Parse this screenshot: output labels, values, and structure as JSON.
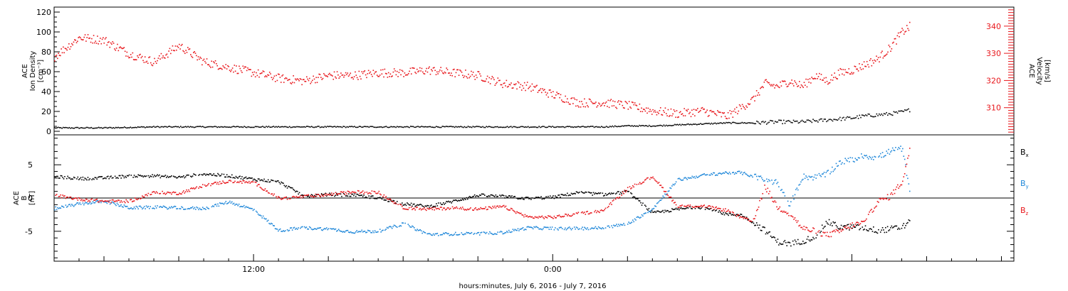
{
  "chart_data": [
    {
      "type": "scatter",
      "panel": "top",
      "ylabel_left": [
        "ACE",
        "Ion Density",
        "[cm⁻³]"
      ],
      "ylabel_right": [
        "ACE",
        "Velocity",
        "[km/s]"
      ],
      "ylim_left": [
        0,
        125
      ],
      "yticks_left": [
        "0",
        "20",
        "40",
        "60",
        "80",
        "100",
        "120"
      ],
      "ylim_right": [
        300,
        347
      ],
      "yticks_right": [
        "310",
        "320",
        "330",
        "340"
      ],
      "xlim_hours": [
        -20,
        18.5
      ],
      "series": [
        {
          "axis": "left",
          "color": "#000000",
          "x_hours": [
            -20,
            -18,
            -16,
            -14,
            -12,
            -10,
            -8,
            -6,
            -4,
            -2,
            0,
            2,
            3,
            4,
            5,
            6,
            7,
            8,
            9,
            10,
            10.5,
            11,
            11.5,
            12,
            12.5,
            13,
            13.5,
            14,
            14.3
          ],
          "values": [
            4,
            4,
            5,
            5,
            5,
            5,
            5,
            5,
            5,
            5,
            5,
            5,
            6,
            6,
            7,
            8,
            9,
            9,
            10,
            10,
            11,
            12,
            13,
            14,
            16,
            17,
            18,
            20,
            22
          ]
        },
        {
          "axis": "right",
          "color": "#e8161b",
          "x_hours": [
            -20,
            -19,
            -18,
            -17,
            -16,
            -15,
            -14,
            -13,
            -12,
            -11,
            -10,
            -9,
            -8,
            -7,
            -6,
            -5,
            -4,
            -3,
            -2,
            -1,
            0,
            1,
            2,
            3,
            4,
            5,
            6,
            7,
            7.5,
            8,
            8.5,
            9,
            9.5,
            10,
            10.5,
            11,
            11.5,
            12,
            12.5,
            13,
            13.5,
            14,
            14.3
          ],
          "values": [
            329,
            336,
            335,
            330,
            327,
            333,
            327,
            325,
            323,
            321,
            320,
            322,
            322,
            323,
            323,
            324,
            323,
            322,
            319,
            318,
            315,
            312,
            312,
            311,
            309,
            308,
            309,
            307,
            310,
            313,
            319,
            318,
            320,
            318,
            322,
            320,
            323,
            324,
            326,
            328,
            332,
            338,
            340
          ]
        }
      ]
    },
    {
      "type": "scatter",
      "panel": "bottom",
      "ylabel": [
        "ACE",
        "B",
        "[nT]"
      ],
      "ylim": [
        -9.5,
        9.5
      ],
      "yticks": [
        "-5",
        "0",
        "5"
      ],
      "xlim_hours": [
        -20,
        18.5
      ],
      "zero_line": true,
      "x_tick_labels": [
        "12:00",
        "0:00"
      ],
      "xlabel": "hours:minutes, July  6, 2016 - July  7, 2016",
      "series": [
        {
          "name": "B",
          "sub": "x",
          "color": "#000000",
          "x_hours": [
            -20,
            -19,
            -18,
            -17,
            -16,
            -15,
            -14,
            -13,
            -12,
            -11,
            -10,
            -9,
            -8,
            -7,
            -6,
            -5,
            -4,
            -3,
            -2,
            -1,
            0,
            1,
            2,
            3,
            4,
            5,
            6,
            7,
            7.5,
            8,
            8.5,
            9,
            9.5,
            10,
            10.5,
            11,
            11.5,
            12,
            12.5,
            13,
            13.5,
            14,
            14.3
          ],
          "values": [
            3.3,
            3.0,
            3.1,
            3.4,
            3.4,
            3.2,
            3.7,
            3.4,
            2.9,
            2.5,
            0.4,
            0.6,
            0.5,
            0.1,
            -0.8,
            -1.2,
            -0.4,
            0.5,
            0.3,
            0.0,
            0.2,
            0.9,
            0.6,
            1.0,
            -2.2,
            -1.6,
            -1.3,
            -2.4,
            -2.4,
            -3.5,
            -4.8,
            -6.5,
            -6.8,
            -6.4,
            -5.7,
            -3.5,
            -4.3,
            -4.3,
            -4.4,
            -4.8,
            -4.6,
            -4.3,
            -3.5
          ]
        },
        {
          "name": "B",
          "sub": "y",
          "color": "#1e87d9",
          "x_hours": [
            -20,
            -19,
            -18,
            -17,
            -16,
            -15,
            -14,
            -13,
            -12,
            -11,
            -10,
            -9,
            -8,
            -7,
            -6,
            -5,
            -4,
            -3,
            -2,
            -1,
            0,
            1,
            2,
            3,
            4,
            5,
            6,
            7,
            7.5,
            8,
            8.5,
            9,
            9.5,
            10,
            10.5,
            11,
            11.5,
            12,
            12.5,
            13,
            13.5,
            14,
            14.3
          ],
          "values": [
            -1.5,
            -0.8,
            -0.4,
            -1.4,
            -1.3,
            -1.4,
            -1.5,
            -0.5,
            -1.7,
            -4.8,
            -4.4,
            -4.6,
            -5.0,
            -4.9,
            -3.8,
            -5.4,
            -5.3,
            -5.3,
            -5.1,
            -4.4,
            -4.5,
            -4.5,
            -4.4,
            -3.8,
            -1.5,
            2.8,
            3.5,
            3.9,
            3.9,
            3.4,
            2.8,
            2.4,
            -1.0,
            3.3,
            3.2,
            3.7,
            5.5,
            5.8,
            6.5,
            6.1,
            7.1,
            7.5,
            1.5
          ]
        },
        {
          "name": "B",
          "sub": "z",
          "color": "#e8161b",
          "x_hours": [
            -20,
            -19,
            -18,
            -17,
            -16,
            -15,
            -14,
            -13,
            -12,
            -11,
            -10,
            -9,
            -8,
            -7,
            -6,
            -5,
            -4,
            -3,
            -2,
            -1,
            0,
            1,
            2,
            3,
            4,
            5,
            6,
            7,
            7.5,
            8,
            8.5,
            9,
            9.5,
            10,
            10.5,
            11,
            11.5,
            12,
            12.5,
            13,
            13.5,
            14,
            14.3
          ],
          "values": [
            0.5,
            -0.1,
            -0.4,
            -0.4,
            0.9,
            0.8,
            2.0,
            2.6,
            2.4,
            0.0,
            0.3,
            0.6,
            1.0,
            0.9,
            -1.4,
            -1.6,
            -1.4,
            -1.6,
            -1.2,
            -2.8,
            -2.8,
            -2.3,
            -1.8,
            1.5,
            3.3,
            -1.2,
            -1.1,
            -1.8,
            -2.8,
            -3.5,
            1.8,
            -1.3,
            -2.2,
            -4.5,
            -4.9,
            -5.5,
            -4.9,
            -4.0,
            -3.6,
            -0.5,
            0.3,
            2.5,
            7.2
          ]
        }
      ]
    }
  ]
}
